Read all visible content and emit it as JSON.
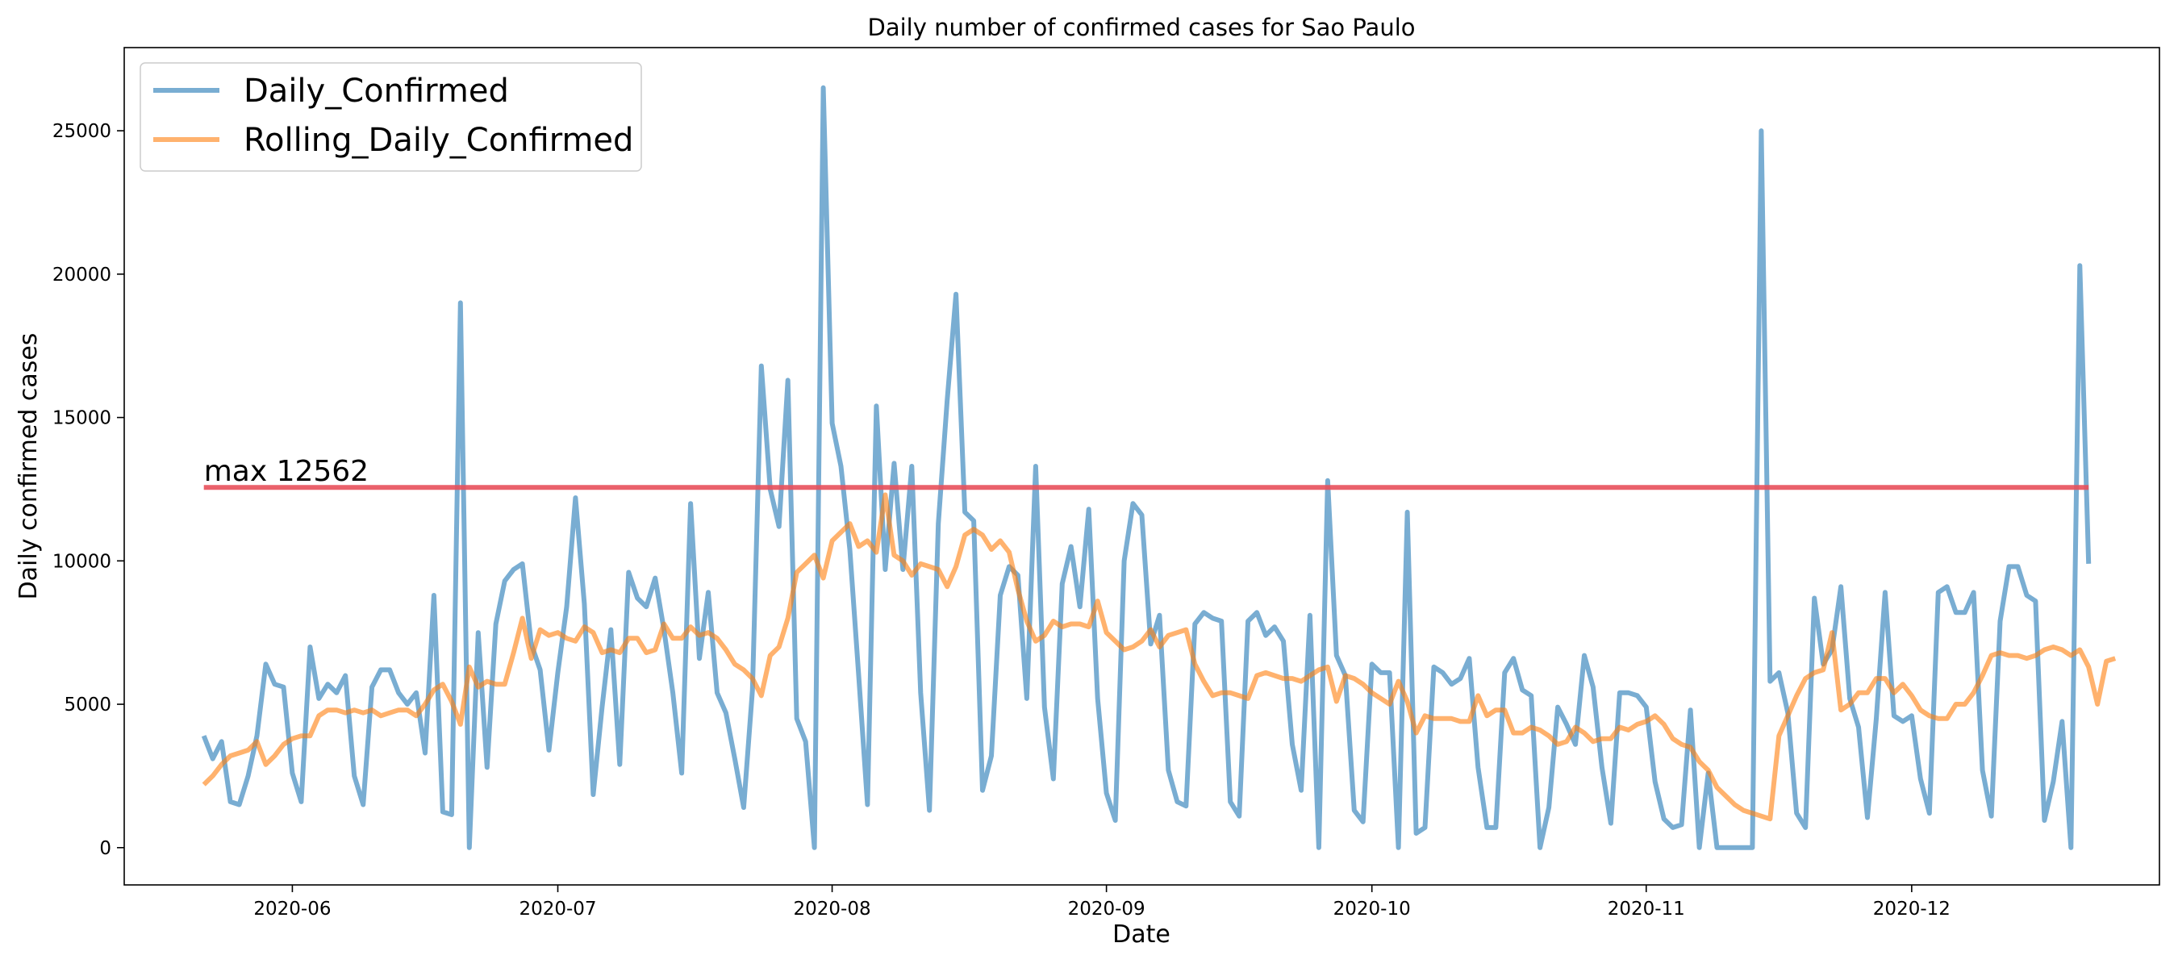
{
  "chart_data": {
    "type": "line",
    "title": "Daily number of confirmed cases for Sao Paulo",
    "xlabel": "Date",
    "ylabel": "Daily confirmed cases",
    "x_start": "2020-05-22",
    "x_ticks": [
      "2020-06",
      "2020-07",
      "2020-08",
      "2020-09",
      "2020-10",
      "2020-11",
      "2020-12"
    ],
    "y_ticks": [
      0,
      5000,
      10000,
      15000,
      20000,
      25000
    ],
    "ylim": [
      -1300,
      27900
    ],
    "grid": false,
    "legend_position": "top-left",
    "annotation": {
      "text": "max 12562",
      "value": 12562,
      "color": "#e8505b"
    },
    "series": [
      {
        "name": "Daily_Confirmed",
        "color": "#1f77b4",
        "values": [
          3900,
          3100,
          3700,
          1600,
          1500,
          2500,
          3900,
          6400,
          5700,
          5600,
          2600,
          1600,
          7000,
          5200,
          5700,
          5400,
          6000,
          2500,
          1500,
          5600,
          6200,
          6200,
          5400,
          5000,
          5400,
          3300,
          8800,
          1250,
          1150,
          19000,
          0,
          7500,
          2800,
          7800,
          9300,
          9700,
          9900,
          7100,
          6200,
          3400,
          6100,
          8400,
          12200,
          8500,
          1850,
          4900,
          7600,
          2900,
          9600,
          8700,
          8400,
          9400,
          7600,
          5400,
          2600,
          12000,
          6600,
          8900,
          5400,
          4700,
          3100,
          1400,
          5500,
          16800,
          12500,
          11200,
          16300,
          4500,
          3700,
          0,
          26500,
          14800,
          13300,
          10400,
          6000,
          1500,
          15400,
          9700,
          13400,
          9700,
          13300,
          5400,
          1300,
          11300,
          15600,
          19300,
          11700,
          11400,
          2000,
          3200,
          8800,
          9800,
          9500,
          5200,
          13300,
          4900,
          2400,
          9200,
          10500,
          8400,
          11800,
          5200,
          1900,
          950,
          10000,
          12000,
          11600,
          7100,
          8100,
          2700,
          1600,
          1450,
          7800,
          8200,
          8000,
          7900,
          1600,
          1100,
          7900,
          8200,
          7400,
          7700,
          7200,
          3600,
          2000,
          8100,
          0,
          12800,
          6700,
          6000,
          1300,
          900,
          6400,
          6100,
          6100,
          0,
          11700,
          500,
          700,
          6300,
          6100,
          5700,
          5900,
          6600,
          2800,
          700,
          700,
          6100,
          6600,
          5500,
          5300,
          0,
          1400,
          4900,
          4300,
          3600,
          6700,
          5600,
          2800,
          850,
          5400,
          5400,
          5300,
          4900,
          2300,
          1000,
          700,
          800,
          4800,
          0,
          2600,
          0,
          0,
          0,
          0,
          0,
          25000,
          5800,
          6100,
          4700,
          1200,
          700,
          8700,
          6400,
          6900,
          9100,
          5200,
          4200,
          1050,
          4500,
          8900,
          4600,
          4400,
          4600,
          2400,
          1200,
          8900,
          9100,
          8200,
          8200,
          8900,
          2700,
          1100,
          7900,
          9800,
          9800,
          8800,
          8600,
          950,
          2300,
          4400,
          0,
          20300,
          9900
        ]
      },
      {
        "name": "Rolling_Daily_Confirmed",
        "color": "#ff7f0e",
        "values": [
          2200,
          2500,
          2900,
          3200,
          3300,
          3400,
          3700,
          2900,
          3200,
          3600,
          3800,
          3900,
          3900,
          4600,
          4800,
          4800,
          4700,
          4800,
          4700,
          4800,
          4600,
          4700,
          4800,
          4800,
          4600,
          5000,
          5500,
          5700,
          5100,
          4300,
          6300,
          5600,
          5800,
          5700,
          5700,
          6800,
          8000,
          6600,
          7600,
          7400,
          7500,
          7300,
          7200,
          7700,
          7500,
          6800,
          6900,
          6800,
          7300,
          7300,
          6800,
          6900,
          7800,
          7300,
          7300,
          7700,
          7400,
          7500,
          7300,
          6900,
          6400,
          6200,
          5900,
          5300,
          6700,
          7000,
          8000,
          9600,
          9900,
          10200,
          9400,
          10700,
          11000,
          11300,
          10500,
          10700,
          10300,
          12300,
          10200,
          10000,
          9500,
          9900,
          9800,
          9700,
          9100,
          9800,
          10900,
          11100,
          10900,
          10400,
          10700,
          10300,
          9000,
          7900,
          7200,
          7400,
          7900,
          7700,
          7800,
          7800,
          7700,
          8600,
          7500,
          7200,
          6900,
          7000,
          7200,
          7600,
          7000,
          7400,
          7500,
          7600,
          6400,
          5800,
          5300,
          5400,
          5400,
          5300,
          5200,
          6000,
          6100,
          6000,
          5900,
          5900,
          5800,
          6000,
          6200,
          6300,
          5100,
          6000,
          5900,
          5700,
          5400,
          5200,
          5000,
          5800,
          5100,
          4000,
          4600,
          4500,
          4500,
          4500,
          4400,
          4400,
          5300,
          4600,
          4800,
          4800,
          4000,
          4000,
          4200,
          4100,
          3900,
          3600,
          3700,
          4200,
          4000,
          3700,
          3800,
          3800,
          4200,
          4100,
          4300,
          4400,
          4600,
          4300,
          3800,
          3600,
          3500,
          3000,
          2700,
          2100,
          1800,
          1500,
          1300,
          1200,
          1100,
          1000,
          3900,
          4600,
          5300,
          5900,
          6100,
          6200,
          7500,
          4800,
          5000,
          5400,
          5400,
          5900,
          5900,
          5400,
          5700,
          5300,
          4800,
          4600,
          4500,
          4500,
          5000,
          5000,
          5400,
          6000,
          6700,
          6800,
          6700,
          6700,
          6600,
          6700,
          6900,
          7000,
          6900,
          6700,
          6900,
          6300,
          5000,
          6500,
          6600
        ]
      }
    ]
  }
}
